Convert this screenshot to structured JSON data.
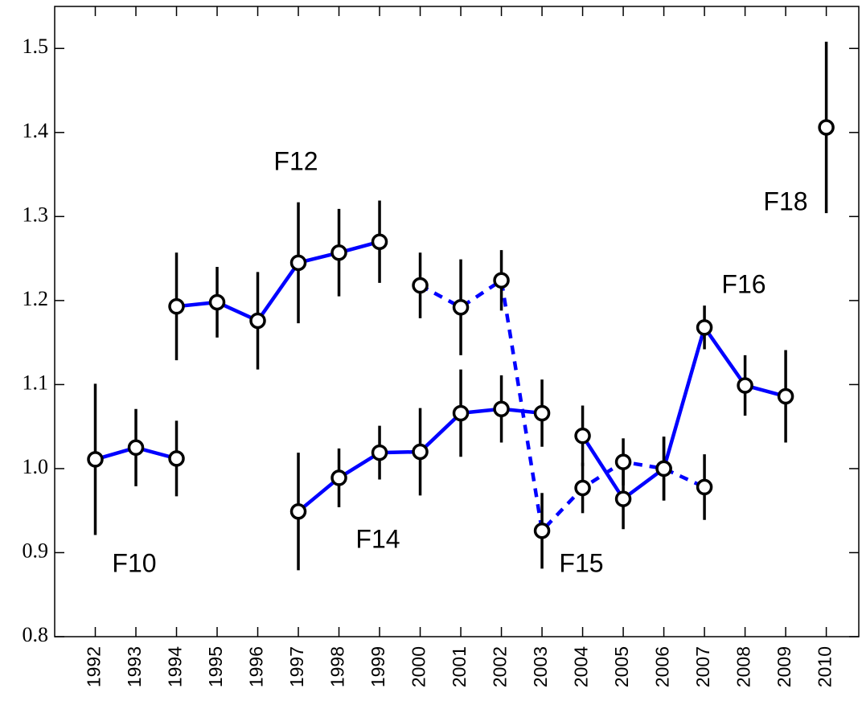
{
  "chart_data": {
    "type": "errorbar-line",
    "xlim": [
      1991,
      2010.8
    ],
    "ylim": [
      0.8,
      1.55
    ],
    "xticks": [
      1992,
      1993,
      1994,
      1995,
      1996,
      1997,
      1998,
      1999,
      2000,
      2001,
      2002,
      2003,
      2004,
      2005,
      2006,
      2007,
      2008,
      2009,
      2010
    ],
    "yticks": [
      0.8,
      0.9,
      {
        "value": 1,
        "label": "1.0"
      },
      1.1,
      1.2,
      1.3,
      1.4,
      1.5
    ],
    "series": [
      {
        "name": "F10",
        "color": "#0000ff",
        "dashed": false,
        "x": [
          1992,
          1993,
          1994
        ],
        "values": [
          1.011,
          1.025,
          1.012
        ],
        "errors": [
          0.09,
          0.046,
          0.045
        ]
      },
      {
        "name": "F12",
        "color": "#0000ff",
        "dashed": false,
        "x": [
          1994,
          1995,
          1996,
          1997,
          1998,
          1999
        ],
        "values": [
          1.193,
          1.198,
          1.176,
          1.245,
          1.257,
          1.27
        ],
        "errors": [
          0.064,
          0.042,
          0.058,
          0.072,
          0.052,
          0.049
        ]
      },
      {
        "name": "F14",
        "color": "#0000ff",
        "dashed": false,
        "x": [
          1997,
          1998,
          1999,
          2000,
          2001,
          2002,
          2003
        ],
        "values": [
          0.949,
          0.989,
          1.019,
          1.02,
          1.066,
          1.071,
          1.066
        ],
        "errors": [
          0.07,
          0.035,
          0.032,
          0.052,
          0.052,
          0.04,
          0.04
        ]
      },
      {
        "name": "F15",
        "color": "#0000ff",
        "dashed": true,
        "x": [
          2000,
          2001,
          2002,
          2003,
          2004,
          2005,
          2006,
          2007
        ],
        "values": [
          1.218,
          1.192,
          1.224,
          0.926,
          0.977,
          1.008,
          1.0,
          0.978
        ],
        "errors": [
          0.039,
          0.057,
          0.036,
          0.045,
          0.03,
          0.028,
          0.038,
          0.039
        ]
      },
      {
        "name": "F16",
        "color": "#0000ff",
        "dashed": false,
        "x": [
          2004,
          2005,
          2006,
          2007,
          2008,
          2009
        ],
        "values": [
          1.039,
          0.964,
          1.0,
          1.168,
          1.099,
          1.086
        ],
        "errors": [
          0.036,
          0.036,
          0.038,
          0.026,
          0.036,
          0.055
        ]
      },
      {
        "name": "F18",
        "color": "#0000ff",
        "dashed": false,
        "x": [
          2010
        ],
        "values": [
          1.406
        ],
        "errors": [
          0.102
        ]
      }
    ]
  }
}
